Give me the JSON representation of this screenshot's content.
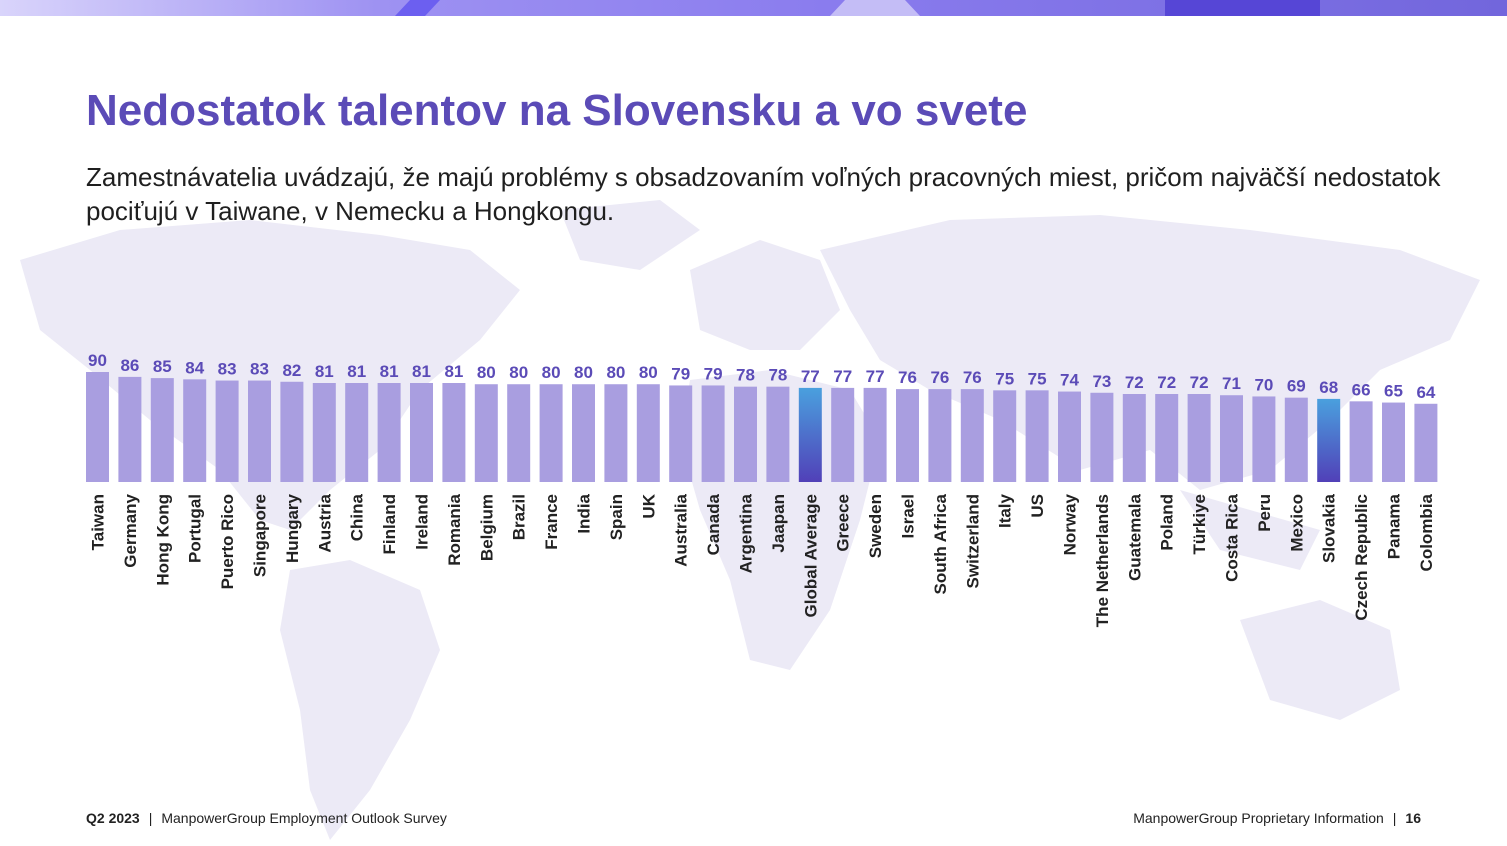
{
  "slide": {
    "title": "Nedostatok talentov na Slovensku a vo svete",
    "subtitle": "Zamestnávatelia uvádzajú, že majú problémy s obsadzovaním voľných pracovných miest, pričom najväčší nedostatok pociťujú v Taiwane, v Nemecku a Hongkongu."
  },
  "footer": {
    "period": "Q2 2023",
    "separator": "|",
    "survey": "ManpowerGroup Employment Outlook Survey",
    "proprietary": "ManpowerGroup Proprietary Information",
    "page": "16"
  },
  "colors": {
    "title": "#5b4bb7",
    "bar": "#a99ee0",
    "highlight_top": "#4aa0de",
    "highlight_bottom": "#5140b8",
    "map": "#eceaf6",
    "band": "#8d7ff0"
  },
  "chart_data": {
    "type": "bar",
    "categories": [
      "Taiwan",
      "Germany",
      "Hong Kong",
      "Portugal",
      "Puerto Rico",
      "Singapore",
      "Hungary",
      "Austria",
      "China",
      "Finland",
      "Ireland",
      "Romania",
      "Belgium",
      "Brazil",
      "France",
      "India",
      "Spain",
      "UK",
      "Australia",
      "Canada",
      "Argentina",
      "Jaapan",
      "Global Average",
      "Greece",
      "Sweden",
      "Israel",
      "South Africa",
      "Switzerland",
      "Italy",
      "US",
      "Norway",
      "The Netherlands",
      "Guatemala",
      "Poland",
      "Türkiye",
      "Costa Rica",
      "Peru",
      "Mexico",
      "Slovakia",
      "Czech Republic",
      "Panama",
      "Colombia"
    ],
    "values": [
      90,
      86,
      85,
      84,
      83,
      83,
      82,
      81,
      81,
      81,
      81,
      81,
      80,
      80,
      80,
      80,
      80,
      80,
      79,
      79,
      78,
      78,
      77,
      77,
      77,
      76,
      76,
      76,
      75,
      75,
      74,
      73,
      72,
      72,
      72,
      71,
      70,
      69,
      68,
      66,
      65,
      64
    ],
    "highlighted": [
      "Global Average",
      "Slovakia"
    ],
    "data_labels": "above bars",
    "grid": false,
    "legend": "none",
    "ylim": [
      0,
      90
    ]
  }
}
